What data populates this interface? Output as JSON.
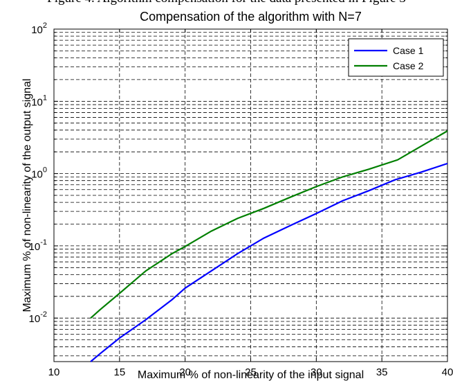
{
  "caption": "Figure 4. Algorithm compensation for the data presented in Figure 3",
  "chart_data": {
    "type": "line",
    "title": "Compensation of the algorithm with N=7",
    "xlabel": "Maximum % of non-linearity of the input signal",
    "ylabel": "Maximum % of non-linearity of the output signal",
    "xlim": [
      10,
      40
    ],
    "ylim": [
      0.0025,
      100
    ],
    "yscale": "log",
    "grid": true,
    "legend_position": "top-right",
    "x_ticks": [
      "10",
      "15",
      "20",
      "25",
      "30",
      "35",
      "40"
    ],
    "y_ticks": [
      {
        "base": "10",
        "exp": "-2",
        "value": 0.01
      },
      {
        "base": "10",
        "exp": "-1",
        "value": 0.1
      },
      {
        "base": "10",
        "exp": "0",
        "value": 1
      },
      {
        "base": "10",
        "exp": "1",
        "value": 10
      },
      {
        "base": "10",
        "exp": "2",
        "value": 100
      }
    ],
    "series": [
      {
        "name": "Case 1",
        "color": "#0000ff",
        "x": [
          12.8,
          13.5,
          15,
          17,
          19,
          20,
          22,
          24,
          26,
          28,
          30,
          32,
          34,
          36,
          38,
          40
        ],
        "y": [
          0.0025,
          0.0032,
          0.0053,
          0.0095,
          0.018,
          0.026,
          0.045,
          0.078,
          0.128,
          0.19,
          0.28,
          0.42,
          0.58,
          0.82,
          1.05,
          1.38
        ]
      },
      {
        "name": "Case 2",
        "color": "#007f00",
        "x": [
          12.8,
          13.5,
          15,
          17,
          19,
          20,
          22,
          24,
          26,
          28,
          30,
          32,
          34,
          36.2,
          38,
          40
        ],
        "y": [
          0.01,
          0.013,
          0.022,
          0.045,
          0.078,
          0.098,
          0.16,
          0.24,
          0.33,
          0.47,
          0.66,
          0.9,
          1.15,
          1.55,
          2.4,
          3.9
        ]
      }
    ]
  }
}
